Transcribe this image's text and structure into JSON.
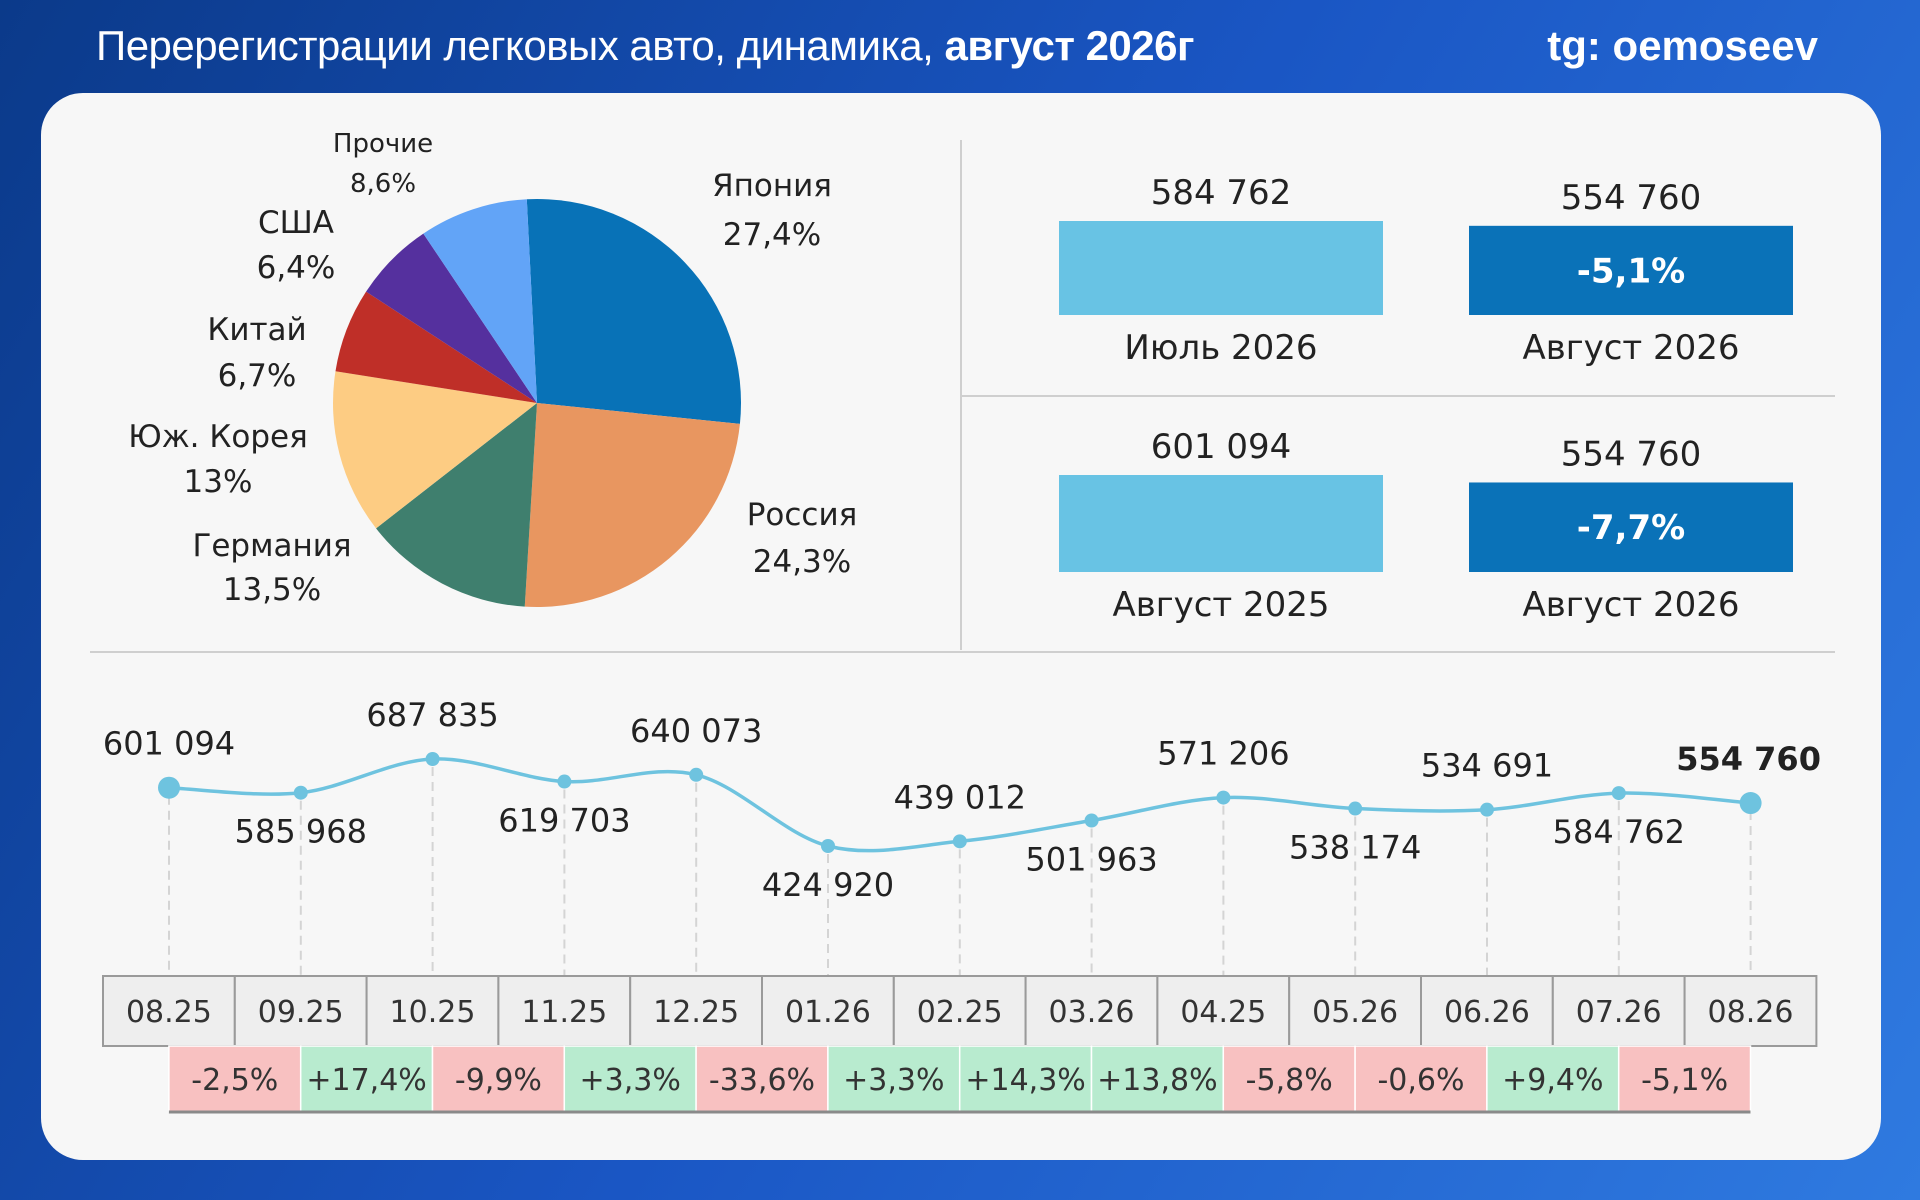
{
  "header": {
    "title_regular": "Перерегистрации легковых авто, динамика, ",
    "title_bold": "август 2026г",
    "brand": "tg: oemoseev"
  },
  "colors": {
    "light_bar": "#68c3e4",
    "dark_bar": "#0a72b8",
    "line": "#6ec3df",
    "negative_bg": "#f8c1c1",
    "positive_bg": "#b8ebcf"
  },
  "chart_data": [
    {
      "type": "pie",
      "slices": [
        {
          "label": "Япония",
          "value": 27.4,
          "value_text": "27,4%",
          "color": "#0872b7"
        },
        {
          "label": "Россия",
          "value": 24.3,
          "value_text": "24,3%",
          "color": "#e89660"
        },
        {
          "label": "Германия",
          "value": 13.5,
          "value_text": "13,5%",
          "color": "#3f7f6e"
        },
        {
          "label": "Юж. Корея",
          "value": 13,
          "value_text": "13%",
          "color": "#fdcc83"
        },
        {
          "label": "Китай",
          "value": 6.7,
          "value_text": "6,7%",
          "color": "#bf2f28"
        },
        {
          "label": "США",
          "value": 6.4,
          "value_text": "6,4%",
          "color": "#55309e"
        },
        {
          "label": "Прочие",
          "value": 8.6,
          "value_text": "8,6%",
          "color": "#62a4f7"
        }
      ]
    },
    {
      "type": "bar",
      "categories": [
        "Июль 2026",
        "Август 2026"
      ],
      "values": [
        584762,
        554760
      ],
      "value_labels": [
        "584 762",
        "554 760"
      ],
      "change": "-5,1%"
    },
    {
      "type": "bar",
      "categories": [
        "Август 2025",
        "Август 2026"
      ],
      "values": [
        601094,
        554760
      ],
      "value_labels": [
        "601 094",
        "554 760"
      ],
      "change": "-7,7%"
    },
    {
      "type": "line",
      "x": [
        "08.25",
        "09.25",
        "10.25",
        "11.25",
        "12.25",
        "01.26",
        "02.25",
        "03.26",
        "04.25",
        "05.26",
        "06.26",
        "07.26",
        "08.26"
      ],
      "y": [
        601094,
        585968,
        687835,
        619703,
        640073,
        424920,
        439012,
        501963,
        571206,
        538174,
        534691,
        584762,
        554760
      ],
      "y_labels": [
        "601 094",
        "585 968",
        "687 835",
        "619 703",
        "640 073",
        "424 920",
        "439 012",
        "501 963",
        "571 206",
        "538 174",
        "534 691",
        "584 762",
        "554 760"
      ],
      "changes": [
        "-2,5%",
        "+17,4%",
        "-9,9%",
        "+3,3%",
        "-33,6%",
        "+3,3%",
        "+14,3%",
        "+13,8%",
        "-5,8%",
        "-0,6%",
        "+9,4%",
        "-5,1%"
      ]
    }
  ]
}
